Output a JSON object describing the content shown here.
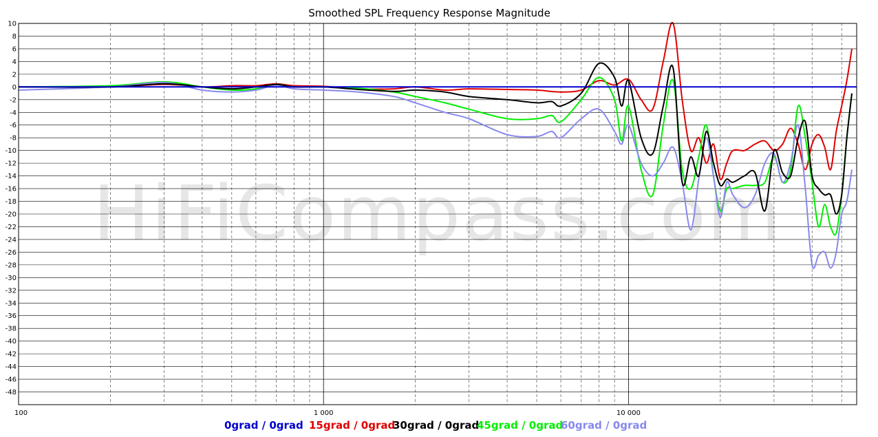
{
  "watermark": "HiFiCompass.com",
  "chart_data": {
    "type": "line",
    "title": "Smoothed SPL Frequency Response Magnitude",
    "xlabel": "",
    "ylabel": "",
    "xscale": "log",
    "xlim": [
      100,
      56000
    ],
    "ylim": [
      -50,
      10
    ],
    "grid": true,
    "legend": "bottom",
    "y_ticks": [
      10,
      8,
      6,
      4,
      2,
      0,
      -2,
      -4,
      -6,
      -8,
      -10,
      -12,
      -14,
      -16,
      -18,
      -20,
      -22,
      -24,
      -26,
      -28,
      -30,
      -32,
      -34,
      -36,
      -38,
      -40,
      -42,
      -44,
      -46,
      -48
    ],
    "x_ticks": [
      {
        "value": 100,
        "label": "100"
      },
      {
        "value": 1000,
        "label": "1 000"
      },
      {
        "value": 10000,
        "label": "10 000"
      }
    ],
    "series": [
      {
        "name": "0grad / 0grad",
        "color": "#0000cc",
        "x": [
          100,
          56000
        ],
        "y": [
          0,
          0
        ]
      },
      {
        "name": "15grad / 0grad",
        "color": "#e00000",
        "x": [
          100,
          200,
          300,
          400,
          500,
          600,
          700,
          800,
          1000,
          1300,
          1700,
          2000,
          2500,
          3000,
          4000,
          5000,
          6000,
          7000,
          8000,
          9000,
          10000,
          11000,
          12000,
          13000,
          14000,
          15000,
          16000,
          17000,
          18000,
          19000,
          20000,
          21000,
          22000,
          24000,
          26000,
          28000,
          30000,
          32000,
          34000,
          36000,
          38000,
          40000,
          42000,
          44000,
          46000,
          48000,
          50000,
          52000,
          54000
        ],
        "y": [
          0,
          0,
          0.4,
          0,
          0.2,
          0.2,
          0.5,
          0.2,
          0.1,
          -0.3,
          -0.3,
          0,
          -0.5,
          -0.3,
          -0.4,
          -0.5,
          -0.8,
          -0.5,
          1,
          0.3,
          1.2,
          -2,
          -3.5,
          4,
          10,
          -2,
          -10,
          -8,
          -12,
          -9,
          -14.5,
          -12,
          -10,
          -10,
          -9,
          -8.5,
          -10,
          -9,
          -6.5,
          -9,
          -13,
          -9,
          -7.5,
          -9.5,
          -13,
          -7,
          -3,
          1,
          6
        ]
      },
      {
        "name": "30grad / 0grad",
        "color": "#000000",
        "x": [
          100,
          200,
          300,
          400,
          500,
          600,
          700,
          800,
          1000,
          1300,
          1700,
          2000,
          2500,
          3000,
          4000,
          5000,
          5600,
          6000,
          7000,
          8000,
          9000,
          9500,
          10000,
          11000,
          12000,
          13000,
          14000,
          15000,
          16000,
          17000,
          18000,
          19000,
          20000,
          21000,
          22000,
          24000,
          26000,
          28000,
          30000,
          32000,
          34000,
          36000,
          38000,
          40000,
          42000,
          44000,
          46000,
          48000,
          50000,
          52000,
          54000
        ],
        "y": [
          0,
          0,
          0.5,
          0,
          -0.3,
          0,
          0.4,
          0,
          0,
          -0.4,
          -0.7,
          -0.5,
          -0.8,
          -1.5,
          -2,
          -2.5,
          -2.3,
          -3,
          -1,
          3.7,
          1.5,
          -3,
          1,
          -8,
          -10.5,
          -3,
          3,
          -15,
          -11,
          -14,
          -7,
          -12,
          -15.5,
          -14.5,
          -15,
          -14,
          -13.5,
          -19.5,
          -10,
          -13.5,
          -14,
          -8,
          -5.5,
          -14,
          -16,
          -17,
          -17,
          -20,
          -17,
          -8,
          -1
        ]
      },
      {
        "name": "45grad / 0grad",
        "color": "#00ee00",
        "x": [
          100,
          200,
          300,
          400,
          500,
          600,
          700,
          800,
          1000,
          1300,
          1700,
          2000,
          2500,
          3000,
          4000,
          5000,
          5600,
          6000,
          7000,
          8000,
          9000,
          9500,
          10000,
          11000,
          12000,
          13000,
          14000,
          15000,
          16000,
          17000,
          18000,
          19000,
          20000,
          21000,
          22000,
          24000,
          26000,
          28000,
          30000,
          32000,
          34000,
          36000,
          38000,
          40000,
          42000,
          44000,
          46000,
          48000,
          50000,
          52000,
          54000
        ],
        "y": [
          0,
          0.2,
          0.8,
          0,
          -0.5,
          -0.3,
          0.4,
          0,
          0,
          -0.2,
          -0.8,
          -1.5,
          -2.5,
          -3.5,
          -5,
          -5,
          -4.5,
          -5.5,
          -2,
          1.5,
          -2,
          -8.5,
          -3,
          -13,
          -17,
          -6,
          1,
          -13,
          -16,
          -11,
          -6,
          -14,
          -19.5,
          -16,
          -16,
          -15.5,
          -15.5,
          -15,
          -11,
          -15,
          -13,
          -3,
          -8,
          -15,
          -22,
          -18.5,
          -22,
          -23,
          -17,
          -8,
          -1
        ]
      },
      {
        "name": "60grad / 0grad",
        "color": "#8888ee",
        "x": [
          100,
          200,
          300,
          400,
          500,
          600,
          700,
          800,
          1000,
          1300,
          1700,
          2000,
          2500,
          3000,
          4000,
          5000,
          5600,
          6000,
          7000,
          8000,
          9000,
          9500,
          10000,
          11000,
          12000,
          13000,
          14000,
          15000,
          16000,
          17000,
          18000,
          19000,
          20000,
          21000,
          22000,
          24000,
          26000,
          28000,
          30000,
          32000,
          34000,
          36000,
          38000,
          40000,
          42000,
          44000,
          46000,
          48000,
          50000,
          52000,
          54000
        ],
        "y": [
          -0.5,
          0,
          0.7,
          -0.5,
          -0.8,
          -0.5,
          0.3,
          -0.3,
          -0.5,
          -0.8,
          -1.5,
          -2.5,
          -4,
          -5,
          -7.5,
          -7.8,
          -7,
          -8,
          -5,
          -3.5,
          -7,
          -9,
          -6,
          -12,
          -14,
          -12,
          -9.5,
          -15,
          -22.5,
          -14.5,
          -8,
          -14,
          -20.5,
          -15,
          -17,
          -19,
          -17,
          -12,
          -10.5,
          -15,
          -12,
          -6,
          -16,
          -28,
          -26.5,
          -26,
          -28.5,
          -26,
          -20,
          -18,
          -13
        ]
      }
    ]
  }
}
